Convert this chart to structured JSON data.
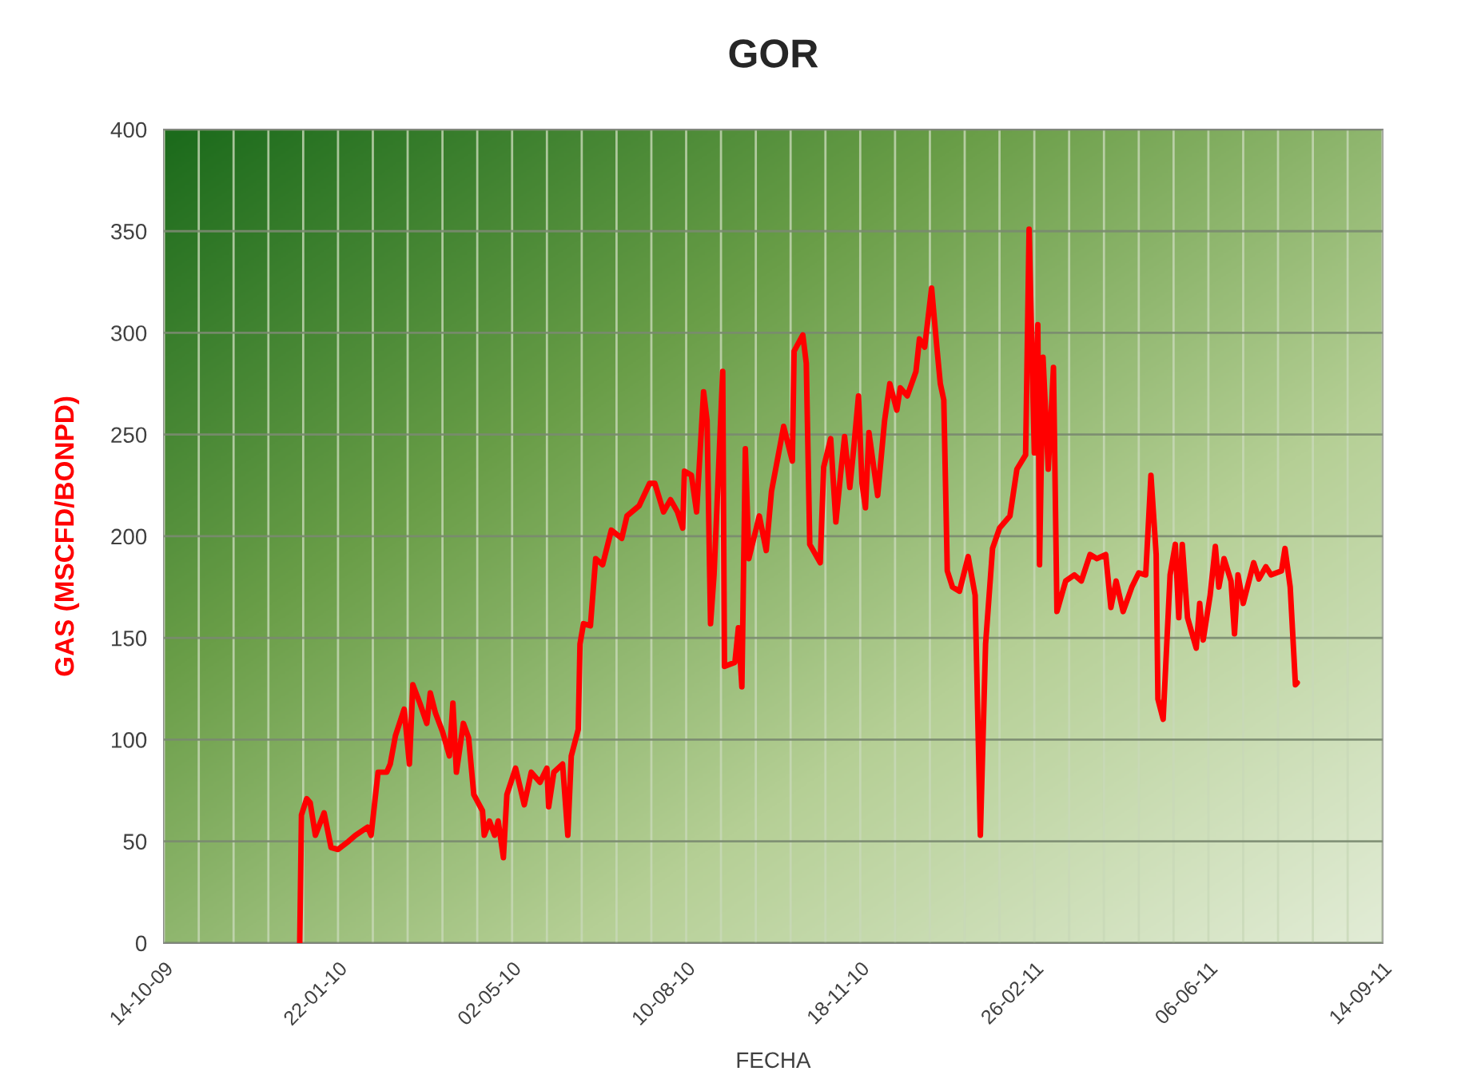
{
  "chart_data": {
    "type": "line",
    "title": "GOR",
    "xlabel": "FECHA",
    "ylabel": "GAS (MSCFD/BONPD)",
    "x": [
      "2009-12-31",
      "2010-01-01",
      "2010-01-04",
      "2010-01-06",
      "2010-01-09",
      "2010-01-14",
      "2010-01-18",
      "2010-01-22",
      "2010-01-28",
      "2010-02-01",
      "2010-02-08",
      "2010-02-10",
      "2010-02-14",
      "2010-02-19",
      "2010-02-21",
      "2010-02-24",
      "2010-03-01",
      "2010-03-04",
      "2010-03-06",
      "2010-03-10",
      "2010-03-14",
      "2010-03-16",
      "2010-03-19",
      "2010-03-23",
      "2010-03-27",
      "2010-03-29",
      "2010-03-31",
      "2010-04-04",
      "2010-04-07",
      "2010-04-10",
      "2010-04-15",
      "2010-04-16",
      "2010-04-19",
      "2010-04-22",
      "2010-04-24",
      "2010-04-27",
      "2010-04-29",
      "2010-05-04",
      "2010-05-09",
      "2010-05-13",
      "2010-05-18",
      "2010-05-22",
      "2010-05-23",
      "2010-05-26",
      "2010-05-31",
      "2010-06-03",
      "2010-06-05",
      "2010-06-09",
      "2010-06-10",
      "2010-06-12",
      "2010-06-16",
      "2010-06-19",
      "2010-06-23",
      "2010-06-28",
      "2010-07-04",
      "2010-07-07",
      "2010-07-14",
      "2010-07-20",
      "2010-07-23",
      "2010-07-28",
      "2010-08-01",
      "2010-08-05",
      "2010-08-08",
      "2010-08-09",
      "2010-08-13",
      "2010-08-16",
      "2010-08-20",
      "2010-08-22",
      "2010-08-24",
      "2010-08-26",
      "2010-08-31",
      "2010-09-01",
      "2010-09-07",
      "2010-09-09",
      "2010-09-11",
      "2010-09-13",
      "2010-09-15",
      "2010-09-21",
      "2010-09-25",
      "2010-09-28",
      "2010-10-05",
      "2010-10-10",
      "2010-10-11",
      "2010-10-16",
      "2010-10-18",
      "2010-10-20",
      "2010-10-26",
      "2010-10-28",
      "2010-11-01",
      "2010-11-04",
      "2010-11-07",
      "2010-11-09",
      "2010-11-12",
      "2010-11-14",
      "2010-11-17",
      "2010-11-19",
      "2010-11-21",
      "2010-11-23",
      "2010-11-28",
      "2010-12-02",
      "2010-12-05",
      "2010-12-09",
      "2010-12-11",
      "2010-12-15",
      "2010-12-20",
      "2010-12-22",
      "2010-12-25",
      "2010-12-29",
      "2011-01-01",
      "2011-01-03",
      "2011-01-05",
      "2011-01-07",
      "2011-01-10",
      "2011-01-14",
      "2011-01-19",
      "2011-01-23",
      "2011-01-26",
      "2011-01-29",
      "2011-02-02",
      "2011-02-06",
      "2011-02-12",
      "2011-02-16",
      "2011-02-21",
      "2011-02-23",
      "2011-02-26",
      "2011-02-28",
      "2011-03-01",
      "2011-03-03",
      "2011-03-06",
      "2011-03-09",
      "2011-03-11",
      "2011-03-16",
      "2011-03-21",
      "2011-03-25",
      "2011-03-30",
      "2011-04-03",
      "2011-04-08",
      "2011-04-11",
      "2011-04-14",
      "2011-04-18",
      "2011-04-23",
      "2011-04-27",
      "2011-05-01",
      "2011-05-04",
      "2011-05-07",
      "2011-05-08",
      "2011-05-11",
      "2011-05-15",
      "2011-05-18",
      "2011-05-20",
      "2011-05-22",
      "2011-05-25",
      "2011-05-30",
      "2011-06-01",
      "2011-06-03",
      "2011-06-07",
      "2011-06-10",
      "2011-06-12",
      "2011-06-15",
      "2011-06-19",
      "2011-06-21",
      "2011-06-23",
      "2011-06-26",
      "2011-07-02",
      "2011-07-05",
      "2011-07-09",
      "2011-07-12",
      "2011-07-18",
      "2011-07-20",
      "2011-07-23",
      "2011-07-26",
      "2011-07-27"
    ],
    "series": [
      {
        "color": "#ff0000",
        "values": [
          0,
          63,
          71,
          69,
          53,
          64,
          47,
          46,
          50,
          53,
          57,
          53,
          84,
          84,
          88,
          102,
          115,
          88,
          127,
          118,
          108,
          123,
          113,
          104,
          92,
          118,
          84,
          108,
          101,
          73,
          65,
          53,
          60,
          53,
          60,
          42,
          73,
          86,
          68,
          84,
          79,
          86,
          67,
          84,
          88,
          53,
          92,
          105,
          147,
          157,
          156,
          189,
          186,
          203,
          199,
          210,
          215,
          226,
          226,
          212,
          218,
          212,
          204,
          232,
          230,
          212,
          271,
          257,
          157,
          181,
          281,
          136,
          138,
          155,
          126,
          243,
          189,
          210,
          193,
          222,
          254,
          237,
          291,
          299,
          285,
          196,
          187,
          234,
          248,
          207,
          233,
          249,
          224,
          241,
          269,
          226,
          214,
          251,
          220,
          257,
          275,
          262,
          273,
          269,
          281,
          297,
          293,
          322,
          293,
          275,
          267,
          183,
          175,
          173,
          190,
          171,
          53,
          147,
          194,
          204,
          210,
          233,
          240,
          351,
          241,
          304,
          186,
          288,
          233,
          283,
          163,
          178,
          181,
          178,
          191,
          189,
          191,
          165,
          178,
          163,
          175,
          182,
          181,
          230,
          191,
          120,
          110,
          181,
          196,
          160,
          196,
          160,
          145,
          167,
          149,
          171,
          195,
          175,
          189,
          178,
          152,
          181,
          167,
          187,
          179,
          185,
          181,
          183,
          194,
          175,
          127,
          128
        ]
      }
    ],
    "xlim": [
      "2009-10-14",
      "2011-09-14"
    ],
    "xticks": [
      {
        "value": "2009-10-14",
        "label": "14-10-09"
      },
      {
        "value": "2009-11-03",
        "label": null
      },
      {
        "value": "2009-11-23",
        "label": null
      },
      {
        "value": "2009-12-13",
        "label": null
      },
      {
        "value": "2010-01-02",
        "label": null
      },
      {
        "value": "2010-01-22",
        "label": "22-01-10"
      },
      {
        "value": "2010-02-11",
        "label": null
      },
      {
        "value": "2010-03-03",
        "label": null
      },
      {
        "value": "2010-03-23",
        "label": null
      },
      {
        "value": "2010-04-12",
        "label": null
      },
      {
        "value": "2010-05-02",
        "label": "02-05-10"
      },
      {
        "value": "2010-05-22",
        "label": null
      },
      {
        "value": "2010-06-11",
        "label": null
      },
      {
        "value": "2010-07-01",
        "label": null
      },
      {
        "value": "2010-07-21",
        "label": null
      },
      {
        "value": "2010-08-10",
        "label": "10-08-10"
      },
      {
        "value": "2010-08-30",
        "label": null
      },
      {
        "value": "2010-09-19",
        "label": null
      },
      {
        "value": "2010-10-09",
        "label": null
      },
      {
        "value": "2010-10-29",
        "label": null
      },
      {
        "value": "2010-11-18",
        "label": "18-11-10"
      },
      {
        "value": "2010-12-08",
        "label": null
      },
      {
        "value": "2010-12-28",
        "label": null
      },
      {
        "value": "2011-01-17",
        "label": null
      },
      {
        "value": "2011-02-06",
        "label": null
      },
      {
        "value": "2011-02-26",
        "label": "26-02-11"
      },
      {
        "value": "2011-03-18",
        "label": null
      },
      {
        "value": "2011-04-07",
        "label": null
      },
      {
        "value": "2011-04-27",
        "label": null
      },
      {
        "value": "2011-05-17",
        "label": null
      },
      {
        "value": "2011-06-06",
        "label": "06-06-11"
      },
      {
        "value": "2011-06-26",
        "label": null
      },
      {
        "value": "2011-07-16",
        "label": null
      },
      {
        "value": "2011-08-05",
        "label": null
      },
      {
        "value": "2011-08-25",
        "label": null
      },
      {
        "value": "2011-09-14",
        "label": "14-09-11"
      }
    ],
    "ylim": [
      0,
      400
    ],
    "yticks": [
      0,
      50,
      100,
      150,
      200,
      250,
      300,
      350,
      400
    ],
    "grid": true,
    "marker": "none",
    "line_style": "solid"
  }
}
